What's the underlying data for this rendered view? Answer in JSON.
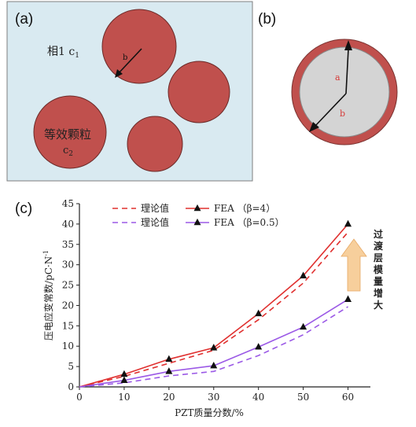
{
  "panels": {
    "a": {
      "label": "(a)",
      "matrix_label": "相1 c",
      "matrix_sub": "1",
      "particle_label": "等效颗粒",
      "particle_c": "c",
      "particle_sub": "2",
      "radius_label": "b",
      "colors": {
        "matrix": "#d9eaf1",
        "particle": "#c0504d"
      }
    },
    "b": {
      "label": "(b)",
      "inner_label": "a",
      "outer_label": "b",
      "colors": {
        "shell": "#c0504d",
        "core": "#d4d4d4"
      }
    },
    "c": {
      "label": "(c)"
    }
  },
  "chart_data": {
    "type": "line",
    "xlabel": "PZT质量分数/%",
    "ylabel": "压电应变常数/pC·N",
    "ylabel_sup": "-1",
    "xlim": [
      0,
      65
    ],
    "ylim": [
      0,
      45
    ],
    "x_ticks": [
      0,
      10,
      20,
      30,
      40,
      50,
      60
    ],
    "y_ticks": [
      0,
      5,
      10,
      15,
      20,
      25,
      30,
      35,
      40,
      45
    ],
    "legend": [
      "理论值",
      "FEA  （β=4）",
      "理论值",
      "FEA  （β=0.5）"
    ],
    "series": [
      {
        "name": "理论值",
        "style": "dashed",
        "color": "#e0302f",
        "x": [
          0,
          10,
          20,
          30,
          40,
          50,
          60
        ],
        "y": [
          0,
          2.6,
          5.8,
          9.0,
          16.5,
          25.5,
          38.0
        ]
      },
      {
        "name": "FEA  （β=4）",
        "style": "solid-triangle",
        "color": "#e0302f",
        "x": [
          0,
          10,
          20,
          30,
          40,
          50,
          60
        ],
        "y": [
          0,
          3.1,
          6.8,
          9.6,
          18.0,
          27.3,
          40.0
        ]
      },
      {
        "name": "理论值",
        "style": "dashed",
        "color": "#9b59e6",
        "x": [
          0,
          10,
          20,
          30,
          40,
          50,
          60
        ],
        "y": [
          0,
          1.0,
          2.7,
          3.8,
          7.7,
          12.8,
          19.7
        ]
      },
      {
        "name": "FEA  （β=0.5）",
        "style": "solid-triangle",
        "color": "#9b59e6",
        "x": [
          0,
          10,
          20,
          30,
          40,
          50,
          60
        ],
        "y": [
          0,
          1.6,
          3.8,
          5.2,
          9.8,
          14.7,
          21.5
        ]
      }
    ],
    "annotation": {
      "text": [
        "过",
        "渡",
        "层",
        "模",
        "量",
        "增",
        "大"
      ],
      "arrow_color": "#f7cf9c"
    },
    "grid": false,
    "legend_position": "top-center"
  }
}
